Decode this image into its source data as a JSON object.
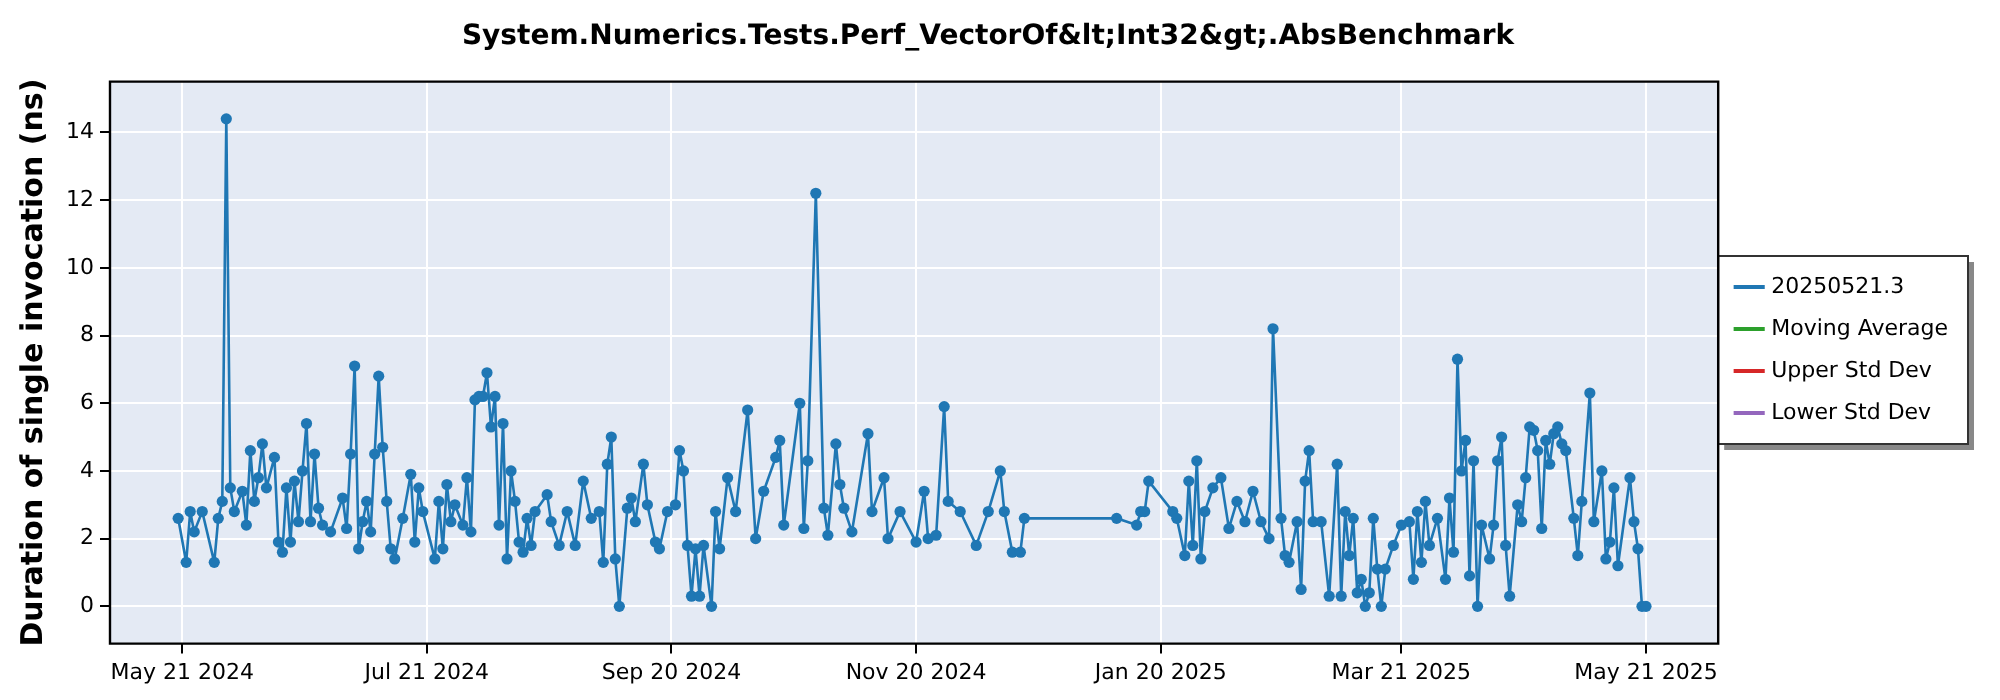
{
  "chart_data": {
    "type": "line",
    "title": "System.Numerics.Tests.Perf_VectorOf&lt;Int32&gt;.AbsBenchmark",
    "ylabel": "Duration of single invocation (ns)",
    "xlim": [
      "2024-05-03",
      "2025-06-08"
    ],
    "ylim": [
      -1.1,
      15.5
    ],
    "xticks": [
      {
        "value": "2024-05-21",
        "label": "May 21 2024"
      },
      {
        "value": "2024-07-21",
        "label": "Jul 21 2024"
      },
      {
        "value": "2024-09-20",
        "label": "Sep 20 2024"
      },
      {
        "value": "2024-11-20",
        "label": "Nov 20 2024"
      },
      {
        "value": "2025-01-20",
        "label": "Jan 20 2025"
      },
      {
        "value": "2025-03-21",
        "label": "Mar 21 2025"
      },
      {
        "value": "2025-05-21",
        "label": "May 21 2025"
      }
    ],
    "yticks": [
      0,
      2,
      4,
      6,
      8,
      10,
      12,
      14
    ],
    "grid": true,
    "legend": "right",
    "marker": "circle",
    "line_style": "solid",
    "series": [
      {
        "name": "20250521.3",
        "color": "#1f77b4",
        "x": [
          "2024-05-20",
          "2024-05-22",
          "2024-05-23",
          "2024-05-24",
          "2024-05-26",
          "2024-05-29",
          "2024-05-30",
          "2024-05-31",
          "2024-06-01",
          "2024-06-02",
          "2024-06-03",
          "2024-06-05",
          "2024-06-06",
          "2024-06-07",
          "2024-06-08",
          "2024-06-09",
          "2024-06-10",
          "2024-06-11",
          "2024-06-13",
          "2024-06-14",
          "2024-06-15",
          "2024-06-16",
          "2024-06-17",
          "2024-06-18",
          "2024-06-19",
          "2024-06-20",
          "2024-06-21",
          "2024-06-22",
          "2024-06-23",
          "2024-06-24",
          "2024-06-25",
          "2024-06-27",
          "2024-06-30",
          "2024-07-01",
          "2024-07-02",
          "2024-07-03",
          "2024-07-04",
          "2024-07-05",
          "2024-07-06",
          "2024-07-07",
          "2024-07-08",
          "2024-07-09",
          "2024-07-10",
          "2024-07-11",
          "2024-07-12",
          "2024-07-13",
          "2024-07-15",
          "2024-07-17",
          "2024-07-18",
          "2024-07-19",
          "2024-07-20",
          "2024-07-23",
          "2024-07-24",
          "2024-07-25",
          "2024-07-26",
          "2024-07-27",
          "2024-07-28",
          "2024-07-30",
          "2024-07-31",
          "2024-08-01",
          "2024-08-02",
          "2024-08-03",
          "2024-08-04",
          "2024-08-05",
          "2024-08-06",
          "2024-08-07",
          "2024-08-08",
          "2024-08-09",
          "2024-08-10",
          "2024-08-11",
          "2024-08-12",
          "2024-08-13",
          "2024-08-14",
          "2024-08-15",
          "2024-08-16",
          "2024-08-17",
          "2024-08-20",
          "2024-08-21",
          "2024-08-23",
          "2024-08-25",
          "2024-08-27",
          "2024-08-29",
          "2024-08-31",
          "2024-09-02",
          "2024-09-03",
          "2024-09-04",
          "2024-09-05",
          "2024-09-06",
          "2024-09-07",
          "2024-09-09",
          "2024-09-10",
          "2024-09-11",
          "2024-09-13",
          "2024-09-14",
          "2024-09-16",
          "2024-09-17",
          "2024-09-19",
          "2024-09-21",
          "2024-09-22",
          "2024-09-23",
          "2024-09-24",
          "2024-09-25",
          "2024-09-26",
          "2024-09-27",
          "2024-09-28",
          "2024-09-30",
          "2024-10-01",
          "2024-10-02",
          "2024-10-04",
          "2024-10-06",
          "2024-10-09",
          "2024-10-11",
          "2024-10-13",
          "2024-10-16",
          "2024-10-17",
          "2024-10-18",
          "2024-10-22",
          "2024-10-23",
          "2024-10-24",
          "2024-10-26",
          "2024-10-28",
          "2024-10-29",
          "2024-10-31",
          "2024-11-01",
          "2024-11-02",
          "2024-11-04",
          "2024-11-08",
          "2024-11-09",
          "2024-11-12",
          "2024-11-13",
          "2024-11-16",
          "2024-11-20",
          "2024-11-22",
          "2024-11-23",
          "2024-11-25",
          "2024-11-27",
          "2024-11-28",
          "2024-12-01",
          "2024-12-05",
          "2024-12-08",
          "2024-12-11",
          "2024-12-12",
          "2024-12-14",
          "2024-12-16",
          "2024-12-17",
          "2025-01-09",
          "2025-01-14",
          "2025-01-15",
          "2025-01-16",
          "2025-01-17",
          "2025-01-23",
          "2025-01-24",
          "2025-01-26",
          "2025-01-27",
          "2025-01-28",
          "2025-01-29",
          "2025-01-30",
          "2025-01-31",
          "2025-02-02",
          "2025-02-04",
          "2025-02-06",
          "2025-02-08",
          "2025-02-10",
          "2025-02-12",
          "2025-02-14",
          "2025-02-16",
          "2025-02-17",
          "2025-02-19",
          "2025-02-20",
          "2025-02-21",
          "2025-02-23",
          "2025-02-24",
          "2025-02-25",
          "2025-02-26",
          "2025-02-27",
          "2025-03-01",
          "2025-03-03",
          "2025-03-05",
          "2025-03-06",
          "2025-03-07",
          "2025-03-08",
          "2025-03-09",
          "2025-03-10",
          "2025-03-11",
          "2025-03-12",
          "2025-03-13",
          "2025-03-14",
          "2025-03-15",
          "2025-03-16",
          "2025-03-17",
          "2025-03-19",
          "2025-03-21",
          "2025-03-23",
          "2025-03-24",
          "2025-03-25",
          "2025-03-26",
          "2025-03-27",
          "2025-03-28",
          "2025-03-30",
          "2025-04-01",
          "2025-04-02",
          "2025-04-03",
          "2025-04-04",
          "2025-04-05",
          "2025-04-06",
          "2025-04-07",
          "2025-04-08",
          "2025-04-09",
          "2025-04-10",
          "2025-04-12",
          "2025-04-13",
          "2025-04-14",
          "2025-04-15",
          "2025-04-16",
          "2025-04-17",
          "2025-04-19",
          "2025-04-20",
          "2025-04-21",
          "2025-04-22",
          "2025-04-23",
          "2025-04-24",
          "2025-04-25",
          "2025-04-26",
          "2025-04-27",
          "2025-04-28",
          "2025-04-29",
          "2025-04-30",
          "2025-05-01",
          "2025-05-03",
          "2025-05-04",
          "2025-05-05",
          "2025-05-07",
          "2025-05-08",
          "2025-05-10",
          "2025-05-11",
          "2025-05-12",
          "2025-05-13",
          "2025-05-14",
          "2025-05-17",
          "2025-05-18",
          "2025-05-19",
          "2025-05-20",
          "2025-05-21"
        ],
        "values": [
          2.6,
          1.3,
          2.8,
          2.2,
          2.8,
          1.3,
          2.6,
          3.1,
          14.4,
          3.5,
          2.8,
          3.4,
          2.4,
          4.6,
          3.1,
          3.8,
          4.8,
          3.5,
          4.4,
          1.9,
          1.6,
          3.5,
          1.9,
          3.7,
          2.5,
          4.0,
          5.4,
          2.5,
          4.5,
          2.9,
          2.4,
          2.2,
          3.2,
          2.3,
          4.5,
          7.1,
          1.7,
          2.5,
          3.1,
          2.2,
          4.5,
          6.8,
          4.7,
          3.1,
          1.7,
          1.4,
          2.6,
          3.9,
          1.9,
          3.5,
          2.8,
          1.4,
          3.1,
          1.7,
          3.6,
          2.5,
          3.0,
          2.4,
          3.8,
          2.2,
          6.1,
          6.2,
          6.2,
          6.9,
          5.3,
          6.2,
          2.4,
          5.4,
          1.4,
          4.0,
          3.1,
          1.9,
          1.6,
          2.6,
          1.8,
          2.8,
          3.3,
          2.5,
          1.8,
          2.8,
          1.8,
          3.7,
          2.6,
          2.8,
          1.3,
          4.2,
          5.0,
          1.4,
          0.0,
          2.9,
          3.2,
          2.5,
          4.2,
          3.0,
          1.9,
          1.7,
          2.8,
          3.0,
          4.6,
          4.0,
          1.8,
          0.3,
          1.7,
          0.3,
          1.8,
          0.0,
          2.8,
          1.7,
          3.8,
          2.8,
          5.8,
          2.0,
          3.4,
          4.4,
          4.9,
          2.4,
          6.0,
          2.3,
          4.3,
          12.2,
          2.9,
          2.1,
          4.8,
          3.6,
          2.9,
          2.2,
          5.1,
          2.8,
          3.8,
          2.0,
          2.8,
          1.9,
          3.4,
          2.0,
          2.1,
          5.9,
          3.1,
          2.8,
          1.8,
          2.8,
          4.0,
          2.8,
          1.6,
          1.6,
          2.6,
          2.6,
          2.4,
          2.8,
          2.8,
          3.7,
          2.8,
          2.6,
          1.5,
          3.7,
          1.8,
          4.3,
          1.4,
          2.8,
          3.5,
          3.8,
          2.3,
          3.1,
          2.5,
          3.4,
          2.5,
          2.0,
          8.2,
          2.6,
          1.5,
          1.3,
          2.5,
          0.5,
          3.7,
          4.6,
          2.5,
          2.5,
          0.3,
          4.2,
          0.3,
          2.8,
          1.5,
          2.6,
          0.4,
          0.8,
          0.0,
          0.4,
          2.6,
          1.1,
          0.0,
          1.1,
          1.8,
          2.4,
          2.5,
          0.8,
          2.8,
          1.3,
          3.1,
          1.8,
          2.6,
          0.8,
          3.2,
          1.6,
          7.3,
          4.0,
          4.9,
          0.9,
          4.3,
          0.0,
          2.4,
          1.4,
          2.4,
          4.3,
          5.0,
          1.8,
          0.3,
          3.0,
          2.5,
          3.8,
          5.3,
          5.2,
          4.6,
          2.3,
          4.9,
          4.2,
          5.1,
          5.3,
          4.8,
          4.6,
          2.6,
          1.5,
          3.1,
          6.3,
          2.5,
          4.0,
          1.4,
          1.9,
          3.5,
          1.2,
          3.8,
          2.5,
          1.7,
          0.0,
          0.0
        ]
      },
      {
        "name": "Moving Average",
        "color": "#2ca02c"
      },
      {
        "name": "Upper Std Dev",
        "color": "#d62728"
      },
      {
        "name": "Lower Std Dev",
        "color": "#9467bd"
      }
    ]
  }
}
